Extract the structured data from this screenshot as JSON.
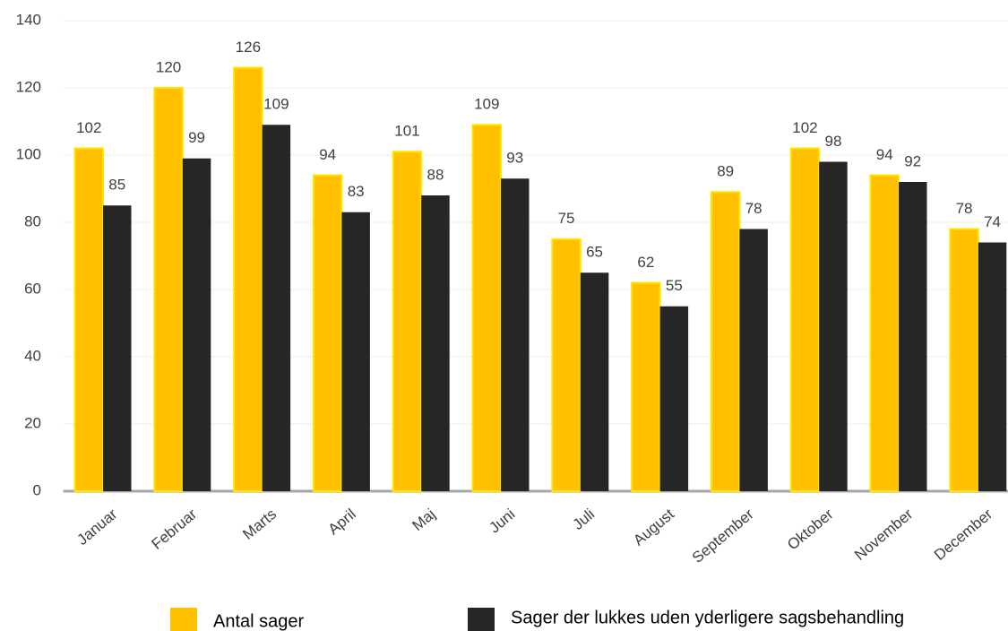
{
  "chart_data": {
    "type": "bar",
    "categories": [
      "Januar",
      "Februar",
      "Marts",
      "April",
      "Maj",
      "Juni",
      "Juli",
      "August",
      "September",
      "Oktober",
      "November",
      "December"
    ],
    "series": [
      {
        "name": "Antal sager",
        "color": "#ffc000",
        "values": [
          102,
          120,
          126,
          94,
          101,
          109,
          75,
          62,
          89,
          102,
          94,
          78
        ]
      },
      {
        "name": "Sager der lukkes uden yderligere sagsbehandling",
        "color": "#262626",
        "values": [
          85,
          99,
          109,
          83,
          88,
          93,
          65,
          55,
          78,
          98,
          92,
          74
        ]
      }
    ],
    "ylim": [
      0,
      140
    ],
    "yticks": [
      0,
      20,
      40,
      60,
      80,
      100,
      120,
      140
    ],
    "grid": true,
    "data_labels": true,
    "legend": "bottom"
  }
}
